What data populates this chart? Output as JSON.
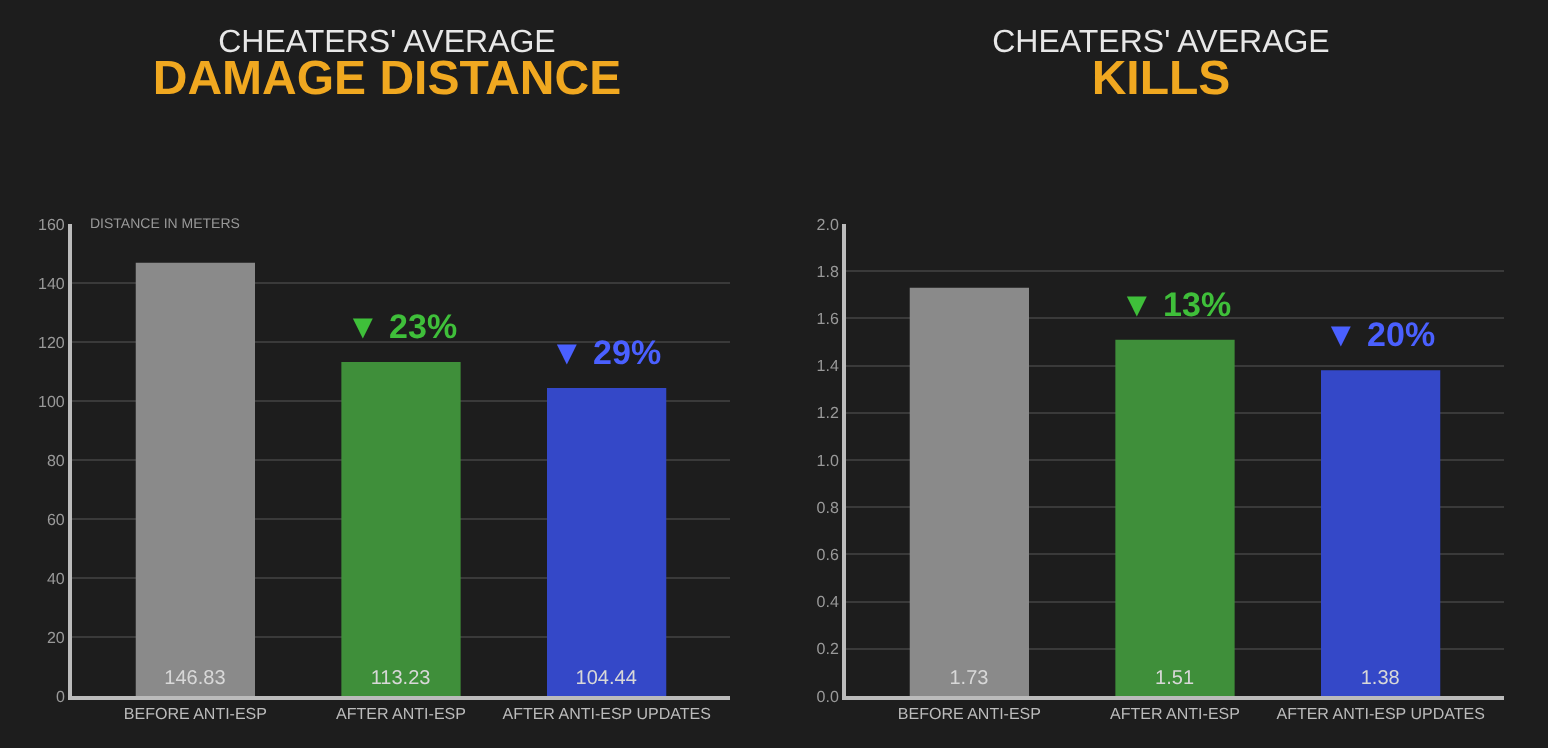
{
  "chart_data": [
    {
      "type": "bar",
      "title": "CHEATERS' AVERAGE",
      "subtitle": "DAMAGE DISTANCE",
      "ylabel": "DISTANCE IN METERS",
      "categories": [
        "BEFORE ANTI-ESP",
        "AFTER ANTI-ESP",
        "AFTER ANTI-ESP UPDATES"
      ],
      "values": [
        146.83,
        113.23,
        104.44
      ],
      "colors": [
        "#8a8a8a",
        "#3f8f3a",
        "#3448c8"
      ],
      "ylim": [
        0,
        160
      ],
      "yticks": [
        0,
        20,
        40,
        60,
        80,
        100,
        120,
        140,
        160
      ],
      "grid": "y",
      "data_labels": true,
      "annotations": [
        {
          "text": "▼ 23%",
          "x": "AFTER ANTI-ESP",
          "y": 113.23
        },
        {
          "text": "▼ 29%",
          "x": "AFTER ANTI-ESP UPDATES",
          "y": 104.44
        }
      ]
    },
    {
      "type": "bar",
      "title": "CHEATERS' AVERAGE",
      "subtitle": "KILLS",
      "categories": [
        "BEFORE ANTI-ESP",
        "AFTER ANTI-ESP",
        "AFTER ANTI-ESP UPDATES"
      ],
      "values": [
        1.73,
        1.51,
        1.38
      ],
      "colors": [
        "#8a8a8a",
        "#3f8f3a",
        "#3448c8"
      ],
      "ylim": [
        0,
        2
      ],
      "yticks": [
        {
          "value": 0,
          "label": "0.0"
        },
        {
          "value": 0.2,
          "label": "0.2"
        },
        {
          "value": 0.4,
          "label": "0.4"
        },
        {
          "value": 0.6,
          "label": "0.6"
        },
        {
          "value": 0.8,
          "label": "0.8"
        },
        {
          "value": 1,
          "label": "1.0"
        },
        {
          "value": 1.2,
          "label": "1.2"
        },
        {
          "value": 1.4,
          "label": "1.4"
        },
        {
          "value": 1.6,
          "label": "1.6"
        },
        {
          "value": 1.8,
          "label": "1.8"
        },
        {
          "value": 2,
          "label": "2.0"
        }
      ],
      "grid": "y",
      "data_labels": true,
      "annotations": [
        {
          "text": "▼ 13%",
          "x": "AFTER ANTI-ESP",
          "y": 1.51
        },
        {
          "text": "▼ 20%",
          "x": "AFTER ANTI-ESP UPDATES",
          "y": 1.38
        }
      ]
    }
  ]
}
